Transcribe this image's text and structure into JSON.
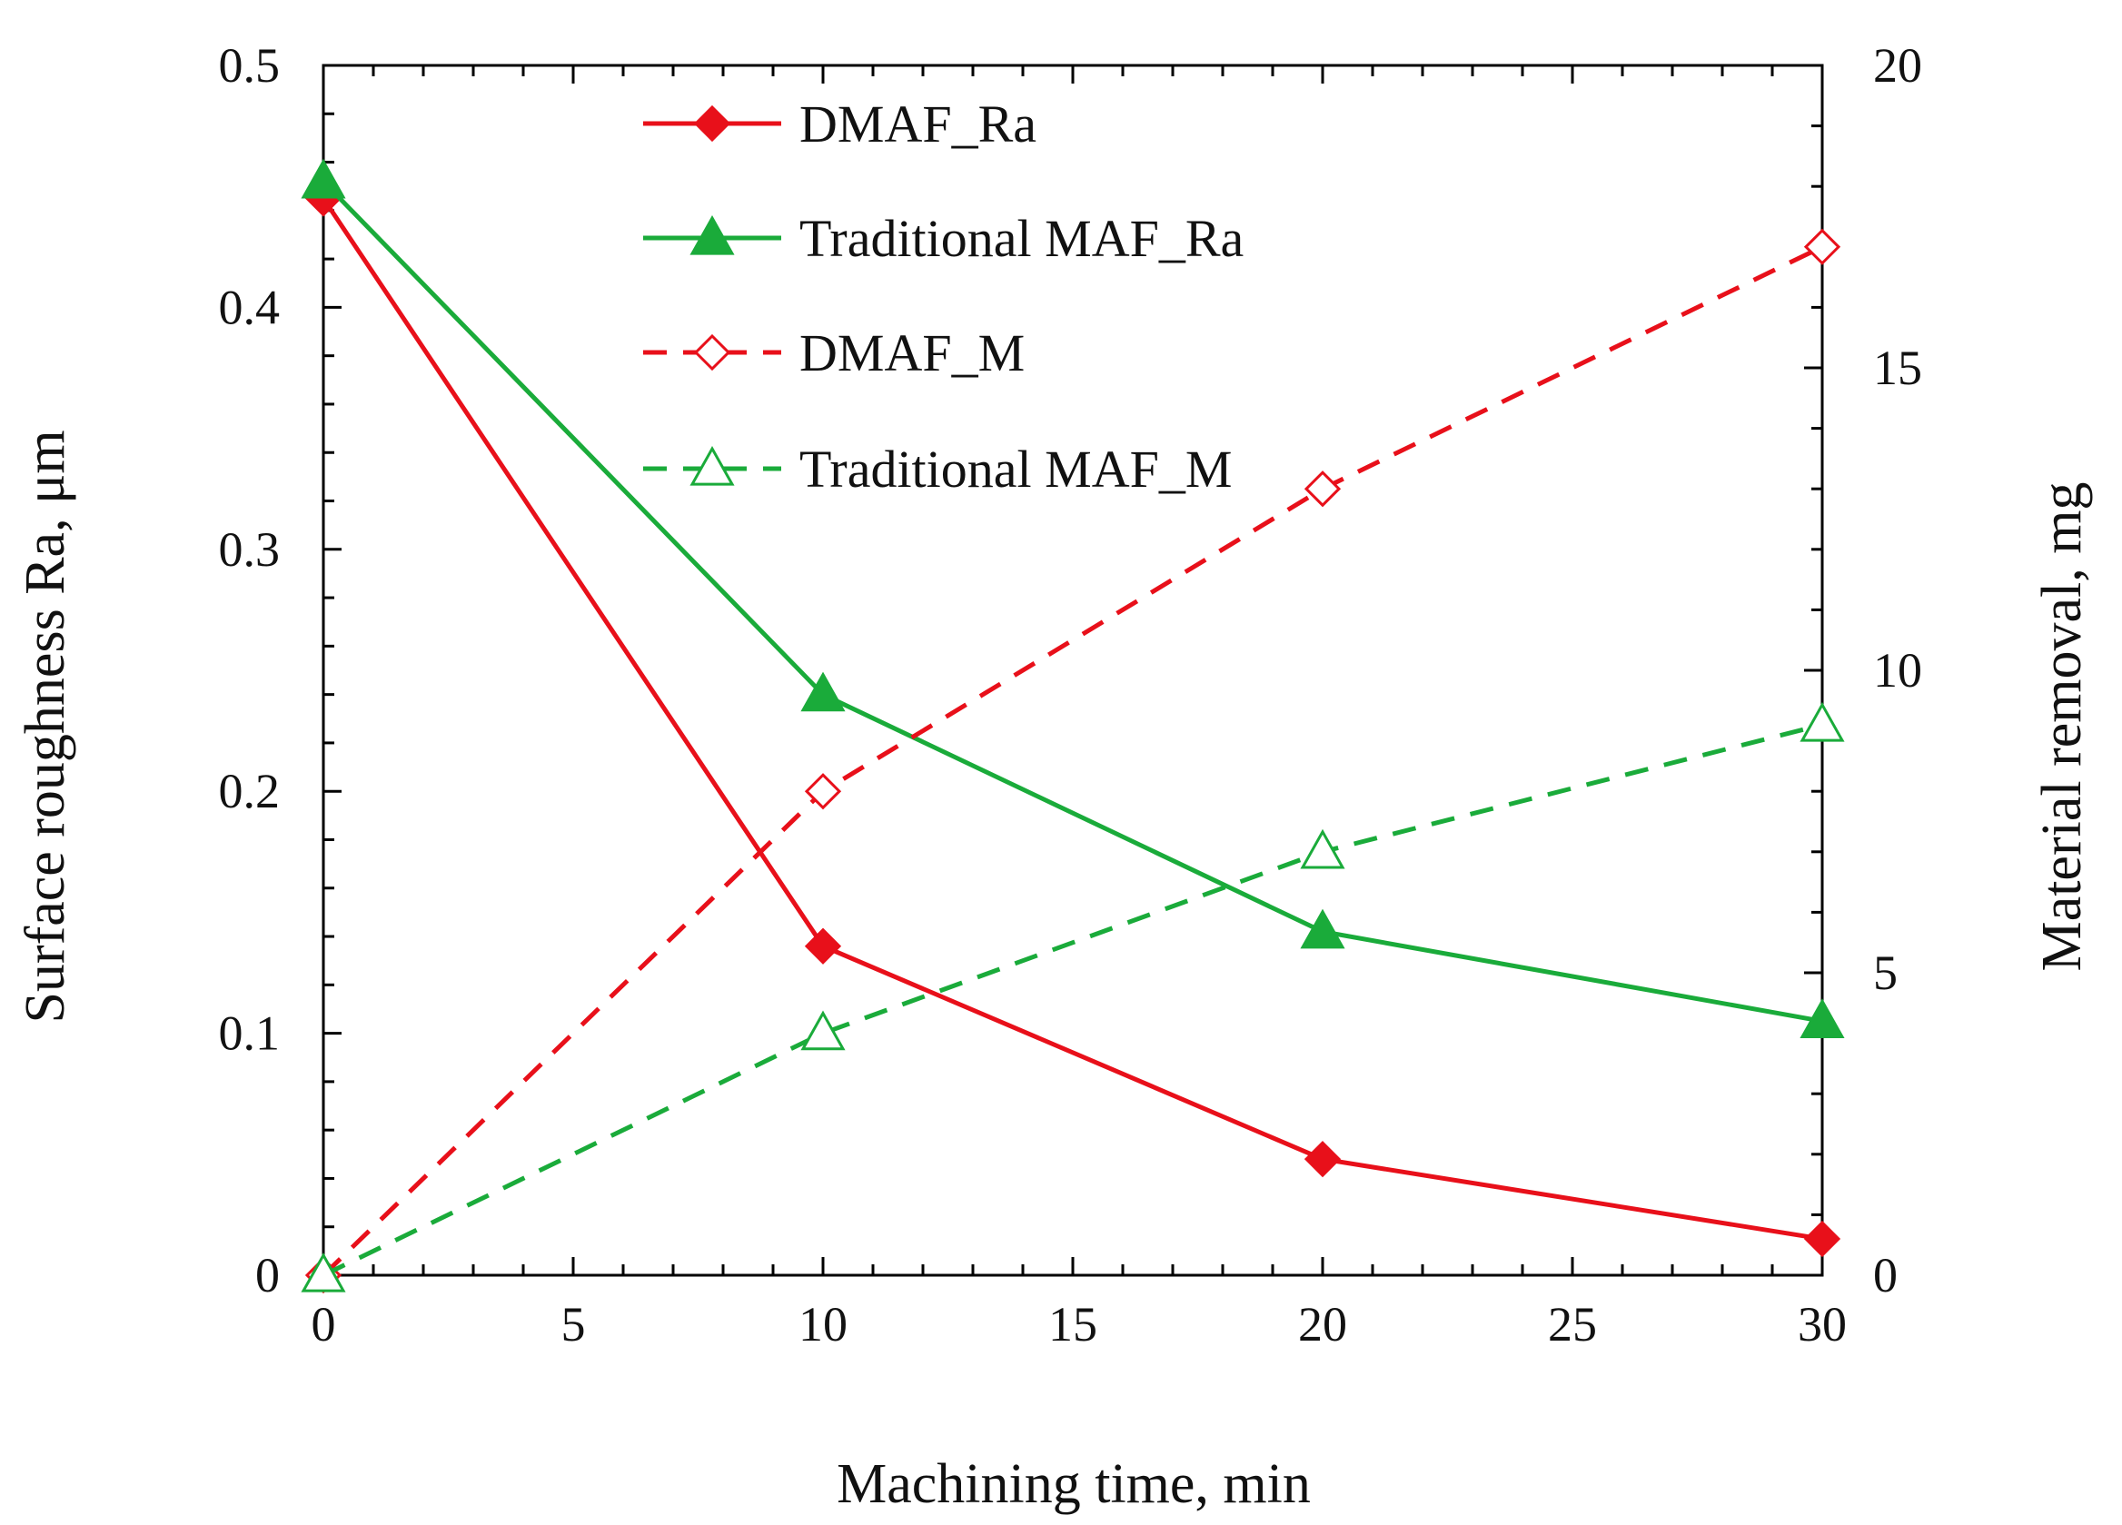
{
  "chart_data": {
    "type": "line",
    "title": "",
    "xlabel": "Machining time, min",
    "ylabel_left": "Surface roughness Ra,  μm",
    "ylabel_right": "Material removal, mg",
    "xlim": [
      0,
      30
    ],
    "ylim_left": [
      0,
      0.5
    ],
    "ylim_right": [
      0,
      20
    ],
    "x_ticks": [
      0,
      5,
      10,
      15,
      20,
      25,
      30
    ],
    "x_tick_labels": [
      "0",
      "5",
      "10",
      "15",
      "20",
      "25",
      "30"
    ],
    "y_left_ticks": [
      0,
      0.1,
      0.2,
      0.3,
      0.4,
      0.5
    ],
    "y_left_tick_labels": [
      "0",
      "0.1",
      "0.2",
      "0.3",
      "0.4",
      "0.5"
    ],
    "y_right_ticks": [
      0,
      5,
      10,
      15,
      20
    ],
    "y_right_tick_labels": [
      "0",
      "5",
      "10",
      "15",
      "20"
    ],
    "grid": false,
    "legend_position": "top-center",
    "series": [
      {
        "name": "DMAF_Ra",
        "axis": "left",
        "x": [
          0,
          10,
          20,
          30
        ],
        "values": [
          0.445,
          0.136,
          0.048,
          0.015
        ],
        "color": "#e8101a",
        "line_style": "solid",
        "marker": "diamond",
        "marker_fill": "filled"
      },
      {
        "name": "Traditional MAF_Ra",
        "axis": "left",
        "x": [
          0,
          10,
          20,
          30
        ],
        "values": [
          0.452,
          0.24,
          0.142,
          0.105
        ],
        "color": "#1aab3a",
        "line_style": "solid",
        "marker": "triangle",
        "marker_fill": "filled"
      },
      {
        "name": "DMAF_M",
        "axis": "right",
        "x": [
          0,
          10,
          20,
          30
        ],
        "values": [
          0,
          8,
          13,
          17
        ],
        "color": "#e8101a",
        "line_style": "dashed",
        "marker": "diamond",
        "marker_fill": "open"
      },
      {
        "name": "Traditional MAF_M",
        "axis": "right",
        "x": [
          0,
          10,
          20,
          30
        ],
        "values": [
          0,
          4,
          7,
          9.1
        ],
        "color": "#1aab3a",
        "line_style": "dashed",
        "marker": "triangle",
        "marker_fill": "open"
      }
    ]
  }
}
